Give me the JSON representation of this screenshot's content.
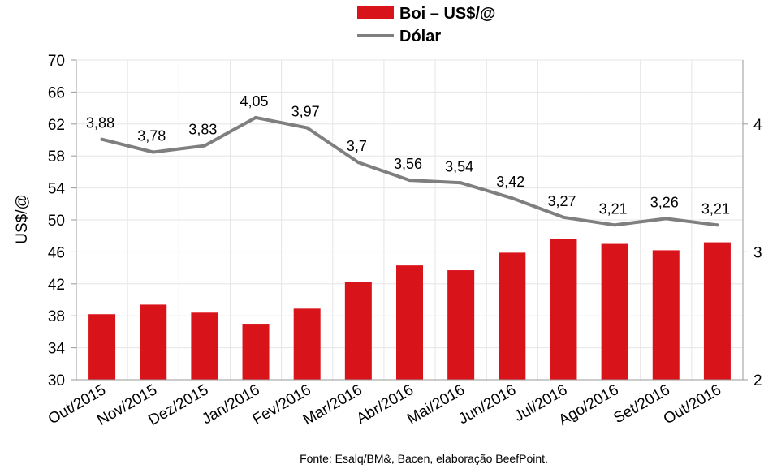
{
  "chart_data": {
    "type": "bar",
    "categories": [
      "Out/2015",
      "Nov/2015",
      "Dez/2015",
      "Jan/2016",
      "Fev/2016",
      "Mar/2016",
      "Abr/2016",
      "Mai/2016",
      "Jun/2016",
      "Jul/2016",
      "Ago/2016",
      "Set/2016",
      "Out/2016"
    ],
    "series": [
      {
        "name": "Boi – US$/@",
        "type": "bar",
        "axis": "left",
        "color": "#d9131a",
        "values": [
          38.2,
          39.4,
          38.4,
          37.0,
          38.9,
          42.2,
          44.3,
          43.7,
          45.9,
          47.6,
          47.0,
          46.2,
          47.2
        ]
      },
      {
        "name": "Dólar",
        "type": "line",
        "axis": "right",
        "color": "#7f7f7f",
        "values": [
          3.88,
          3.78,
          3.83,
          4.05,
          3.97,
          3.7,
          3.56,
          3.54,
          3.42,
          3.27,
          3.21,
          3.26,
          3.21
        ],
        "labels": [
          "3,88",
          "3,78",
          "3,83",
          "4,05",
          "3,97",
          "3,7",
          "3,56",
          "3,54",
          "3,42",
          "3,27",
          "3,21",
          "3,26",
          "3,21"
        ]
      }
    ],
    "ylabel": "US$/@",
    "ylim": [
      30,
      70
    ],
    "yticks": [
      30,
      34,
      38,
      42,
      46,
      50,
      54,
      58,
      62,
      66,
      70
    ],
    "y2lim": [
      2,
      4.5
    ],
    "y2ticks": [
      2,
      3,
      4
    ],
    "grid": true,
    "legend": "top-center"
  },
  "source_note": "Fonte:  Esalq/BM&,  Bacen,  elaboração  BeefPoint."
}
